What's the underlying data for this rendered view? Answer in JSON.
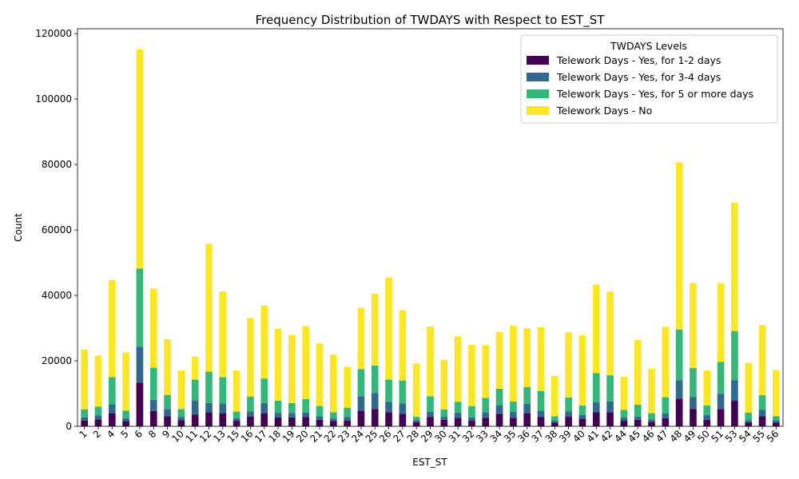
{
  "chart_data": {
    "type": "bar",
    "stacked": true,
    "title": "Frequency Distribution of TWDAYS with Respect to EST_ST",
    "xlabel": "EST_ST",
    "ylabel": "Count",
    "ylim": [
      0,
      121500
    ],
    "yticks": [
      0,
      20000,
      40000,
      60000,
      80000,
      100000,
      120000
    ],
    "grid": false,
    "legend": {
      "title": "TWDAYS Levels",
      "placement": "top-right"
    },
    "categories": [
      "1",
      "2",
      "4",
      "5",
      "6",
      "8",
      "9",
      "10",
      "11",
      "12",
      "13",
      "15",
      "16",
      "17",
      "18",
      "19",
      "20",
      "21",
      "22",
      "23",
      "24",
      "25",
      "26",
      "27",
      "28",
      "29",
      "30",
      "31",
      "32",
      "33",
      "34",
      "35",
      "36",
      "37",
      "38",
      "39",
      "40",
      "41",
      "42",
      "44",
      "45",
      "46",
      "47",
      "48",
      "49",
      "50",
      "51",
      "53",
      "54",
      "55",
      "56"
    ],
    "series": [
      {
        "name": "Telework Days - Yes, for 1-2 days",
        "color": "#440154",
        "values": [
          1800,
          2100,
          4000,
          1600,
          13300,
          4700,
          3100,
          1900,
          3600,
          4300,
          4000,
          1700,
          3000,
          4000,
          2700,
          2700,
          2800,
          2000,
          1600,
          1700,
          4800,
          5300,
          4300,
          3800,
          1300,
          2800,
          2000,
          2600,
          1700,
          2600,
          3800,
          2600,
          4000,
          2800,
          1100,
          2900,
          2300,
          4300,
          4300,
          1700,
          2000,
          1400,
          2500,
          8400,
          5300,
          2000,
          5300,
          7800,
          1200,
          3100,
          1100
        ]
      },
      {
        "name": "Telework Days - Yes, for 3-4 days",
        "color": "#31688e",
        "values": [
          900,
          1200,
          2700,
          900,
          11000,
          3400,
          2200,
          900,
          4300,
          2800,
          3000,
          800,
          1500,
          3100,
          1400,
          1400,
          1400,
          1100,
          800,
          1100,
          4400,
          4900,
          3200,
          3200,
          600,
          1600,
          900,
          1600,
          1000,
          1700,
          2700,
          1800,
          2900,
          2000,
          600,
          1600,
          1200,
          3000,
          3300,
          1000,
          1000,
          700,
          1500,
          5700,
          3600,
          1400,
          4600,
          6300,
          700,
          1900,
          700
        ]
      },
      {
        "name": "Telework Days - Yes, for 5 or more days",
        "color": "#35b779",
        "values": [
          2500,
          2700,
          8300,
          2300,
          23900,
          9800,
          4300,
          2500,
          6400,
          9600,
          8000,
          2000,
          4600,
          7500,
          3700,
          3000,
          4100,
          3100,
          1900,
          2900,
          8300,
          8400,
          6800,
          7000,
          1000,
          4800,
          2300,
          3300,
          3500,
          4400,
          5000,
          3200,
          5100,
          6000,
          1400,
          4300,
          2900,
          9000,
          8000,
          2300,
          3600,
          1900,
          4900,
          15500,
          8900,
          3000,
          9800,
          15000,
          2300,
          4500,
          1300
        ]
      },
      {
        "name": "Telework Days - No",
        "color": "#fde725",
        "values": [
          18200,
          15600,
          29700,
          17800,
          67000,
          24200,
          17000,
          11800,
          7000,
          39100,
          26200,
          12600,
          24000,
          22300,
          22000,
          20800,
          22300,
          19100,
          17600,
          12500,
          18700,
          22000,
          31200,
          21500,
          16300,
          21300,
          15100,
          20000,
          18700,
          16100,
          17400,
          23100,
          18000,
          19500,
          12300,
          19900,
          21400,
          27000,
          25600,
          10100,
          19800,
          13600,
          21500,
          51100,
          26000,
          10700,
          24100,
          39200,
          15200,
          21400,
          14100
        ]
      }
    ]
  }
}
